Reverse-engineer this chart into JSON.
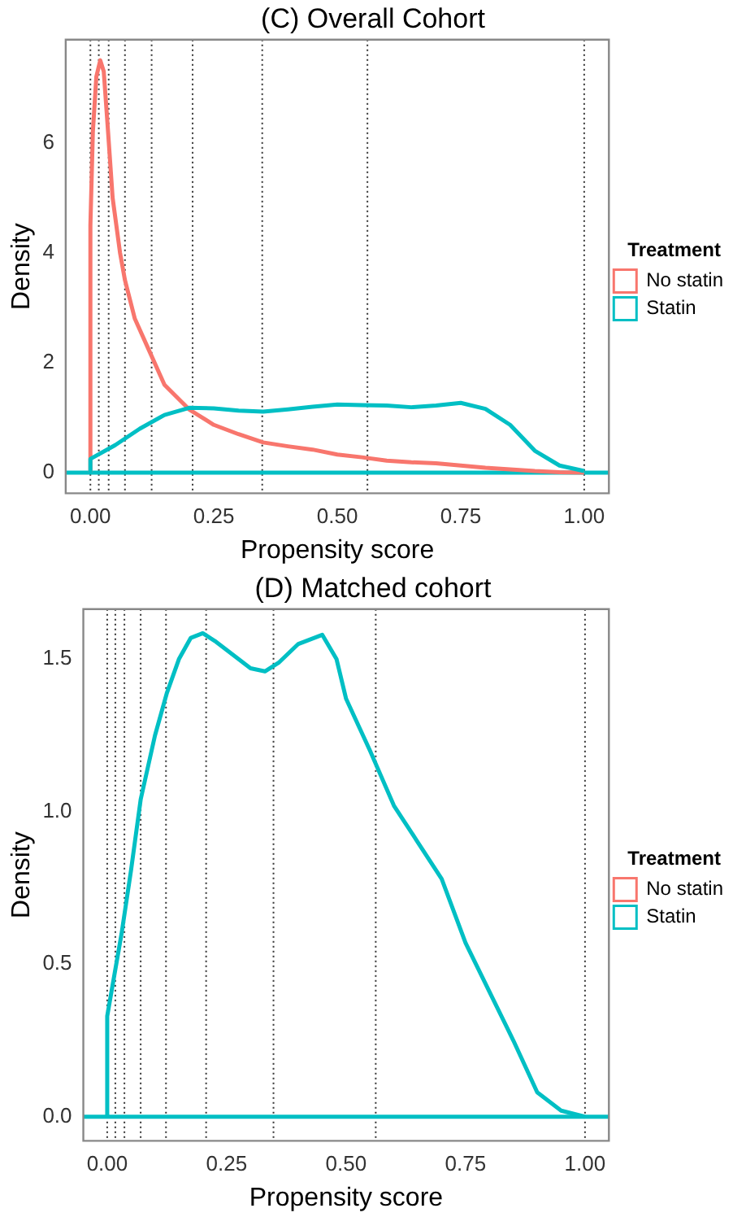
{
  "chart_data": [
    {
      "type": "line",
      "title": "(C) Overall Cohort",
      "xlabel": "Propensity score",
      "ylabel": "Density",
      "legend_title": "Treatment",
      "legend": "right",
      "grid": false,
      "marker": "none",
      "line_style": "solid",
      "xlim": [
        -0.05,
        1.05
      ],
      "ylim": [
        -0.375,
        7.875
      ],
      "xticks": [
        {
          "value": 0,
          "label": "0.00"
        },
        {
          "value": 0.25,
          "label": "0.25"
        },
        {
          "value": 0.5,
          "label": "0.50"
        },
        {
          "value": 0.75,
          "label": "0.75"
        },
        {
          "value": 1,
          "label": "1.00"
        }
      ],
      "yticks": [
        0,
        2,
        4,
        6
      ],
      "ref_lines": [
        {
          "axis": "x",
          "value": 0,
          "line_style": "dotted",
          "color": "#333333"
        },
        {
          "axis": "x",
          "value": 0.017,
          "line_style": "dotted",
          "color": "#333333"
        },
        {
          "axis": "x",
          "value": 0.037,
          "line_style": "dotted",
          "color": "#333333"
        },
        {
          "axis": "x",
          "value": 0.07,
          "line_style": "dotted",
          "color": "#333333"
        },
        {
          "axis": "x",
          "value": 0.124,
          "line_style": "dotted",
          "color": "#333333"
        },
        {
          "axis": "x",
          "value": 0.207,
          "line_style": "dotted",
          "color": "#333333"
        },
        {
          "axis": "x",
          "value": 0.348,
          "line_style": "dotted",
          "color": "#333333"
        },
        {
          "axis": "x",
          "value": 0.561,
          "line_style": "dotted",
          "color": "#333333"
        },
        {
          "axis": "x",
          "value": 1,
          "line_style": "dotted",
          "color": "#333333"
        },
        {
          "axis": "y",
          "value": 0,
          "line_style": "solid",
          "color": "#00bfc4"
        }
      ],
      "series": [
        {
          "name": "No statin",
          "color": "#f8766d",
          "x": [
            0,
            0,
            0.005,
            0.012,
            0.02,
            0.027,
            0.035,
            0.045,
            0.06,
            0.07,
            0.09,
            0.12,
            0.15,
            0.2,
            0.25,
            0.3,
            0.35,
            0.4,
            0.45,
            0.5,
            0.55,
            0.6,
            0.65,
            0.7,
            0.75,
            0.8,
            0.85,
            0.9,
            0.95,
            1
          ],
          "values": [
            0,
            4.5,
            6.2,
            7.2,
            7.5,
            7.3,
            6.3,
            5.0,
            4.0,
            3.5,
            2.8,
            2.2,
            1.6,
            1.15,
            0.87,
            0.7,
            0.55,
            0.48,
            0.42,
            0.33,
            0.28,
            0.22,
            0.19,
            0.17,
            0.13,
            0.09,
            0.06,
            0.03,
            0.01,
            0
          ]
        },
        {
          "name": "Statin",
          "color": "#00bfc4",
          "x": [
            0,
            0,
            0.05,
            0.1,
            0.15,
            0.2,
            0.25,
            0.3,
            0.35,
            0.4,
            0.45,
            0.5,
            0.55,
            0.6,
            0.65,
            0.7,
            0.75,
            0.8,
            0.85,
            0.9,
            0.95,
            1
          ],
          "values": [
            0,
            0.25,
            0.5,
            0.8,
            1.05,
            1.18,
            1.17,
            1.13,
            1.11,
            1.15,
            1.2,
            1.24,
            1.23,
            1.22,
            1.19,
            1.22,
            1.27,
            1.16,
            0.87,
            0.4,
            0.13,
            0.03
          ]
        }
      ]
    },
    {
      "type": "line",
      "title": "(D) Matched cohort",
      "xlabel": "Propensity score",
      "ylabel": "Density",
      "legend_title": "Treatment",
      "legend": "right",
      "grid": false,
      "marker": "none",
      "line_style": "solid",
      "xlim": [
        -0.05,
        1.05
      ],
      "ylim": [
        -0.079,
        1.664
      ],
      "xticks": [
        {
          "value": 0,
          "label": "0.00"
        },
        {
          "value": 0.25,
          "label": "0.25"
        },
        {
          "value": 0.5,
          "label": "0.50"
        },
        {
          "value": 0.75,
          "label": "0.75"
        },
        {
          "value": 1,
          "label": "1.00"
        }
      ],
      "yticks": [
        {
          "value": 0,
          "label": "0.0"
        },
        {
          "value": 0.5,
          "label": "0.5"
        },
        {
          "value": 1,
          "label": "1.0"
        },
        {
          "value": 1.5,
          "label": "1.5"
        }
      ],
      "ref_lines": [
        {
          "axis": "x",
          "value": 0,
          "line_style": "dotted",
          "color": "#333333"
        },
        {
          "axis": "x",
          "value": 0.017,
          "line_style": "dotted",
          "color": "#333333"
        },
        {
          "axis": "x",
          "value": 0.036,
          "line_style": "dotted",
          "color": "#333333"
        },
        {
          "axis": "x",
          "value": 0.07,
          "line_style": "dotted",
          "color": "#333333"
        },
        {
          "axis": "x",
          "value": 0.123,
          "line_style": "dotted",
          "color": "#333333"
        },
        {
          "axis": "x",
          "value": 0.207,
          "line_style": "dotted",
          "color": "#333333"
        },
        {
          "axis": "x",
          "value": 0.348,
          "line_style": "dotted",
          "color": "#333333"
        },
        {
          "axis": "x",
          "value": 0.562,
          "line_style": "dotted",
          "color": "#333333"
        },
        {
          "axis": "x",
          "value": 1,
          "line_style": "dotted",
          "color": "#333333"
        },
        {
          "axis": "y",
          "value": 0,
          "line_style": "solid",
          "color": "#00bfc4"
        }
      ],
      "series": [
        {
          "name": "No statin",
          "color": "#f8766d"
        },
        {
          "name": "Statin",
          "color": "#00bfc4",
          "x": [
            0,
            0,
            0.03,
            0.05,
            0.07,
            0.1,
            0.125,
            0.15,
            0.175,
            0.2,
            0.225,
            0.25,
            0.3,
            0.33,
            0.36,
            0.4,
            0.45,
            0.48,
            0.5,
            0.55,
            0.6,
            0.65,
            0.7,
            0.75,
            0.8,
            0.85,
            0.9,
            0.95,
            1
          ],
          "values": [
            0,
            0.33,
            0.6,
            0.81,
            1.04,
            1.25,
            1.39,
            1.5,
            1.57,
            1.585,
            1.56,
            1.53,
            1.47,
            1.46,
            1.49,
            1.55,
            1.58,
            1.5,
            1.37,
            1.2,
            1.02,
            0.9,
            0.78,
            0.57,
            0.41,
            0.25,
            0.08,
            0.02,
            0
          ]
        }
      ]
    }
  ]
}
